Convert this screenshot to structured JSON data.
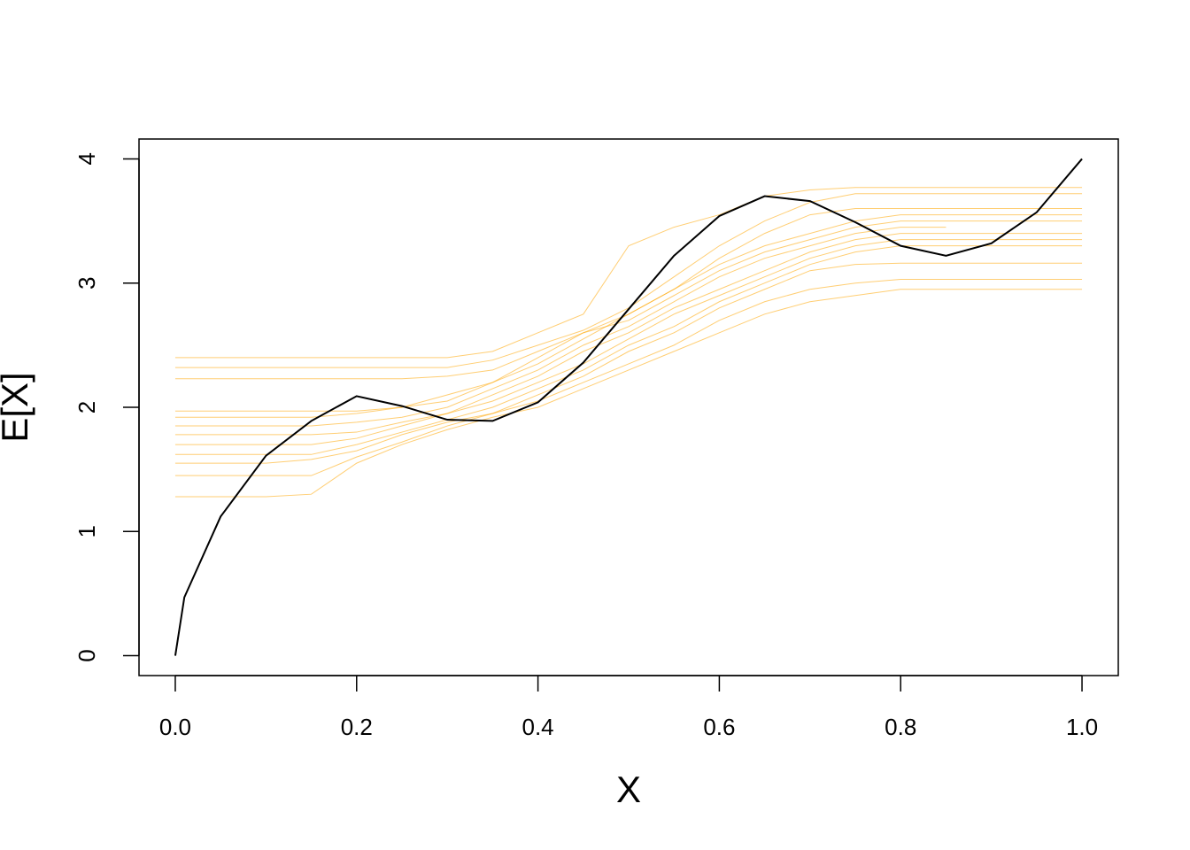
{
  "chart_data": {
    "type": "line",
    "xlabel": "X",
    "ylabel": "E[X]",
    "x": [
      0,
      0.01,
      0.05,
      0.1,
      0.15,
      0.2,
      0.25,
      0.3,
      0.35,
      0.4,
      0.45,
      0.5,
      0.55,
      0.6,
      0.65,
      0.7,
      0.75,
      0.8,
      0.85,
      0.9,
      0.95,
      1.0
    ],
    "xlim": [
      -0.04,
      1.04
    ],
    "ylim": [
      -0.16,
      4.16
    ],
    "xticks": [
      {
        "value": 0,
        "label": "0.0"
      },
      0.2,
      0.4,
      0.6,
      0.8,
      {
        "value": 1,
        "label": "1.0"
      }
    ],
    "yticks": [
      0,
      1,
      2,
      3,
      4
    ],
    "series": [
      {
        "color": "#FFA500",
        "alpha": 0.55,
        "linewidth": 1,
        "values": [
          2.4,
          2.4,
          2.4,
          2.4,
          2.4,
          2.4,
          2.4,
          2.4,
          2.45,
          2.6,
          2.75,
          3.3,
          3.45,
          3.55,
          3.7,
          3.75,
          3.77,
          3.77,
          3.77,
          3.77,
          3.77,
          3.77
        ]
      },
      {
        "color": "#FFA500",
        "alpha": 0.55,
        "linewidth": 1,
        "values": [
          2.32,
          2.32,
          2.32,
          2.32,
          2.32,
          2.32,
          2.32,
          2.32,
          2.38,
          2.5,
          2.62,
          2.8,
          3.05,
          3.3,
          3.5,
          3.65,
          3.72,
          3.72,
          3.72,
          3.72,
          3.72,
          3.72
        ]
      },
      {
        "color": "#FFA500",
        "alpha": 0.55,
        "linewidth": 1,
        "values": [
          2.23,
          2.23,
          2.23,
          2.23,
          2.23,
          2.23,
          2.23,
          2.25,
          2.3,
          2.45,
          2.6,
          2.75,
          2.95,
          3.2,
          3.4,
          3.55,
          3.6,
          3.6,
          3.6,
          3.6,
          3.6,
          3.6
        ]
      },
      {
        "color": "#FFA500",
        "alpha": 0.55,
        "linewidth": 1,
        "values": [
          1.97,
          1.97,
          1.97,
          1.97,
          1.97,
          1.97,
          2.0,
          2.1,
          2.2,
          2.35,
          2.55,
          2.75,
          2.95,
          3.15,
          3.3,
          3.4,
          3.5,
          3.55,
          3.55,
          3.55,
          3.55,
          3.55
        ]
      },
      {
        "color": "#FFA500",
        "alpha": 0.55,
        "linewidth": 1,
        "values": [
          1.92,
          1.92,
          1.92,
          1.92,
          1.92,
          1.95,
          2.0,
          2.05,
          2.2,
          2.4,
          2.6,
          2.7,
          2.9,
          3.1,
          3.25,
          3.35,
          3.45,
          3.5,
          3.5,
          3.5,
          3.5,
          3.5
        ]
      },
      {
        "color": "#FFA500",
        "alpha": 0.55,
        "linewidth": 1,
        "values": [
          1.85,
          1.85,
          1.85,
          1.85,
          1.85,
          1.88,
          1.92,
          2.0,
          2.15,
          2.3,
          2.5,
          2.65,
          2.85,
          3.05,
          3.2,
          3.3,
          3.4,
          3.45,
          3.45,
          null,
          null,
          null
        ]
      },
      {
        "color": "#FFA500",
        "alpha": 0.55,
        "linewidth": 1,
        "values": [
          1.78,
          1.78,
          1.78,
          1.78,
          1.78,
          1.8,
          1.88,
          1.95,
          2.1,
          2.25,
          2.45,
          2.6,
          2.8,
          2.95,
          3.1,
          3.25,
          3.35,
          3.4,
          3.4,
          3.4,
          3.4,
          3.4
        ]
      },
      {
        "color": "#FFA500",
        "alpha": 0.55,
        "linewidth": 1,
        "values": [
          1.7,
          1.7,
          1.7,
          1.7,
          1.7,
          1.75,
          1.85,
          1.95,
          2.05,
          2.2,
          2.35,
          2.55,
          2.75,
          2.9,
          3.05,
          3.2,
          3.3,
          3.35,
          3.35,
          3.35,
          3.35,
          3.35
        ]
      },
      {
        "color": "#FFA500",
        "alpha": 0.55,
        "linewidth": 1,
        "values": [
          1.62,
          1.62,
          1.62,
          1.62,
          1.62,
          1.7,
          1.8,
          1.9,
          2.0,
          2.15,
          2.3,
          2.5,
          2.65,
          2.85,
          3.0,
          3.15,
          3.25,
          3.3,
          3.3,
          3.3,
          3.3,
          3.3
        ]
      },
      {
        "color": "#FFA500",
        "alpha": 0.55,
        "linewidth": 1,
        "values": [
          1.55,
          1.55,
          1.55,
          1.55,
          1.58,
          1.65,
          1.78,
          1.88,
          1.95,
          2.1,
          2.25,
          2.45,
          2.6,
          2.8,
          2.95,
          3.1,
          3.15,
          3.16,
          3.16,
          3.16,
          3.16,
          3.16
        ]
      },
      {
        "color": "#FFA500",
        "alpha": 0.55,
        "linewidth": 1,
        "values": [
          1.45,
          1.45,
          1.45,
          1.45,
          1.45,
          1.6,
          1.72,
          1.85,
          1.95,
          2.05,
          2.2,
          2.35,
          2.5,
          2.7,
          2.85,
          2.95,
          3.0,
          3.03,
          3.03,
          3.03,
          3.03,
          3.03
        ]
      },
      {
        "color": "#FFA500",
        "alpha": 0.55,
        "linewidth": 1,
        "values": [
          1.28,
          1.28,
          1.28,
          1.28,
          1.3,
          1.55,
          1.7,
          1.82,
          1.92,
          2.0,
          2.15,
          2.3,
          2.45,
          2.6,
          2.75,
          2.85,
          2.9,
          2.95,
          2.95,
          2.95,
          2.95,
          2.95
        ]
      },
      {
        "color": "#000000",
        "alpha": 1,
        "linewidth": 2,
        "values": [
          0,
          0.47,
          1.12,
          1.61,
          1.89,
          2.09,
          2.01,
          1.9,
          1.89,
          2.04,
          2.36,
          2.79,
          3.22,
          3.54,
          3.7,
          3.66,
          3.49,
          3.3,
          3.22,
          3.32,
          3.57,
          4.0
        ]
      }
    ]
  }
}
